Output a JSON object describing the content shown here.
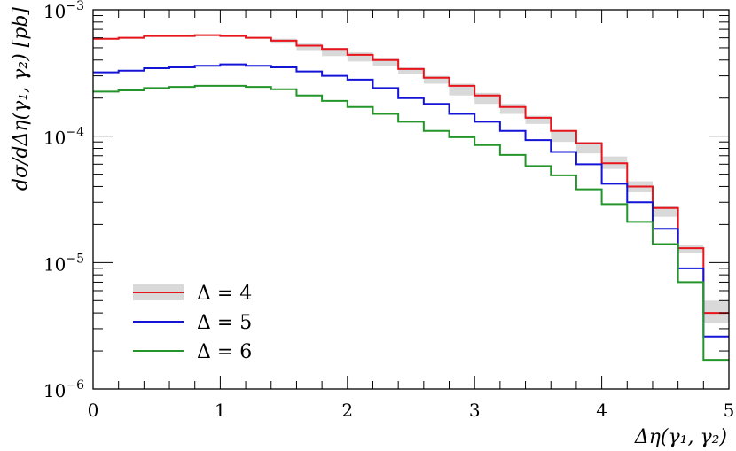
{
  "chart_data": {
    "type": "line",
    "step": true,
    "title": "",
    "xlabel": "Δη(γ₁, γ₂)",
    "ylabel": "dσ/dΔη(γ₁, γ₂) [pb]",
    "xlim": [
      0,
      5
    ],
    "ylim": [
      1e-06,
      0.001
    ],
    "yscale": "log",
    "x_tick_labels": [
      "0",
      "1",
      "2",
      "3",
      "4",
      "5"
    ],
    "y_tick_labels": [
      {
        "base": "10",
        "exp": "−6"
      },
      {
        "base": "10",
        "exp": "−5"
      },
      {
        "base": "10",
        "exp": "−4"
      },
      {
        "base": "10",
        "exp": "−3"
      }
    ],
    "bin_edges": [
      0,
      0.2,
      0.4,
      0.6,
      0.8,
      1.0,
      1.2,
      1.4,
      1.6,
      1.8,
      2.0,
      2.2,
      2.4,
      2.6,
      2.8,
      3.0,
      3.2,
      3.4,
      3.6,
      3.8,
      4.0,
      4.2,
      4.4,
      4.6,
      4.8,
      5.0
    ],
    "series": [
      {
        "name": "Δ = 4",
        "color": "#e8141b",
        "band_color": "#d9d9d9",
        "values": [
          0.00059,
          0.0006,
          0.00062,
          0.00062,
          0.00063,
          0.00062,
          0.0006,
          0.00057,
          0.00052,
          0.00049,
          0.00044,
          0.0004,
          0.00034,
          0.00029,
          0.00025,
          0.00021,
          0.00017,
          0.00014,
          0.00011,
          8.8e-05,
          6.1e-05,
          4e-05,
          2.7e-05,
          1.3e-05,
          4e-06
        ],
        "band_low": [
          0.00058,
          0.00059,
          0.00061,
          0.00061,
          0.00062,
          0.00061,
          0.00059,
          0.00054,
          0.00048,
          0.00043,
          0.00039,
          0.00036,
          0.00031,
          0.00026,
          0.00021,
          0.00018,
          0.00015,
          0.000125,
          9e-05,
          7.3e-05,
          5.5e-05,
          3.6e-05,
          2.3e-05,
          1.2e-05,
          3.3e-06
        ],
        "band_high": [
          0.0006,
          0.00061,
          0.00063,
          0.00063,
          0.00064,
          0.00063,
          0.00061,
          0.00059,
          0.00054,
          0.0005,
          0.00046,
          0.00041,
          0.00035,
          0.0003,
          0.00026,
          0.00022,
          0.00018,
          0.000145,
          0.000112,
          9e-05,
          6.9e-05,
          4.4e-05,
          2.8e-05,
          1.38e-05,
          5e-06
        ]
      },
      {
        "name": "Δ = 5",
        "color": "#1414d6",
        "values": [
          0.00032,
          0.00033,
          0.000345,
          0.00035,
          0.00036,
          0.00037,
          0.00036,
          0.00035,
          0.000325,
          0.0003,
          0.00028,
          0.00024,
          0.0002,
          0.00018,
          0.00015,
          0.00013,
          0.00011,
          9.3e-05,
          7.5e-05,
          6e-05,
          4.2e-05,
          3e-05,
          1.85e-05,
          9e-06,
          2.6e-06
        ]
      },
      {
        "name": "Δ = 6",
        "color": "#24952a",
        "values": [
          0.000225,
          0.00023,
          0.00024,
          0.000245,
          0.00025,
          0.00025,
          0.000245,
          0.000235,
          0.00021,
          0.00019,
          0.00017,
          0.00015,
          0.00013,
          0.00011,
          9.8e-05,
          8.5e-05,
          7.1e-05,
          5.8e-05,
          4.9e-05,
          3.8e-05,
          2.9e-05,
          2.1e-05,
          1.4e-05,
          7e-06,
          1.7e-06
        ]
      }
    ],
    "legend_position": "bottom-left"
  }
}
